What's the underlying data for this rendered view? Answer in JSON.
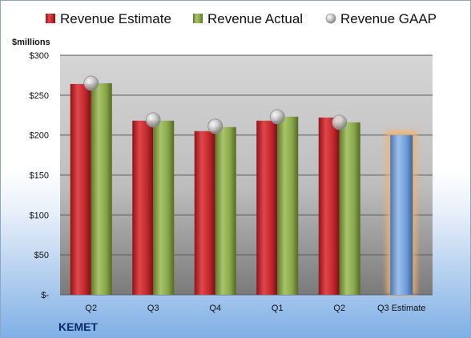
{
  "company": "KEMET",
  "unit_label": "$millions",
  "legend": [
    {
      "key": "estimate",
      "label": "Revenue Estimate",
      "icon": "square-marker",
      "color": "#c0282d"
    },
    {
      "key": "actual",
      "label": "Revenue Actual",
      "icon": "square-marker",
      "color": "#8aa84a"
    },
    {
      "key": "gaap",
      "label": "Revenue GAAP",
      "icon": "sphere-marker",
      "color": "#b8b8b8"
    }
  ],
  "chart_data": {
    "type": "bar",
    "categories": [
      "Q2",
      "Q3",
      "Q4",
      "Q1",
      "Q2",
      "Q3 Estimate"
    ],
    "y_tick_labels": [
      "$-",
      "$50",
      "$100",
      "$150",
      "$200",
      "$250",
      "$300"
    ],
    "y_ticks": [
      0,
      50,
      100,
      150,
      200,
      250,
      300
    ],
    "ylim": [
      0,
      300
    ],
    "ylabel": "$millions",
    "grid": true,
    "legend_position": "top",
    "series": [
      {
        "name": "Revenue Estimate",
        "type": "bar",
        "color": "#c0282d",
        "values": [
          264,
          218,
          205,
          218,
          222,
          null
        ]
      },
      {
        "name": "Revenue Actual",
        "type": "bar",
        "color": "#8aa84a",
        "values": [
          265,
          218,
          210,
          223,
          216,
          null
        ]
      },
      {
        "name": "Revenue GAAP",
        "type": "marker",
        "color": "#b8b8b8",
        "values": [
          265,
          219,
          211,
          223,
          216,
          null
        ]
      }
    ],
    "forecast": {
      "category_index": 5,
      "value": 200,
      "color": "#6f9fd8",
      "highlight": "#f6b26b"
    }
  }
}
